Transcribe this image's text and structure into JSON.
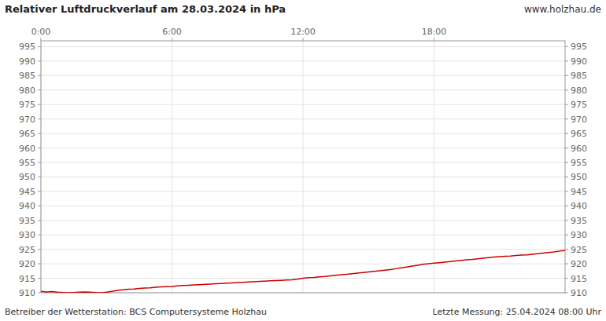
{
  "chart_data": {
    "type": "line",
    "title": "Relativer Luftdruckverlauf am 28.03.2024 in hPa",
    "annotations": [
      "www.holzhau.de",
      "Betreiber der Wetterstation: BCS Computersysteme Holzhau",
      "Letzte Messung: 25.04.2024 08:00 Uhr"
    ],
    "color": "#cc0000",
    "grid": true,
    "xlim": [
      0,
      24
    ],
    "xticks": [
      {
        "value": 0,
        "label": "0:00"
      },
      {
        "value": 6,
        "label": "6:00"
      },
      {
        "value": 12,
        "label": "12:00"
      },
      {
        "value": 18,
        "label": "18:00"
      }
    ],
    "ylim": [
      910,
      997
    ],
    "yticks": [
      910,
      915,
      920,
      925,
      930,
      935,
      940,
      945,
      950,
      955,
      960,
      965,
      970,
      975,
      980,
      985,
      990,
      995
    ],
    "x": [
      0.0,
      0.25,
      0.5,
      0.75,
      1.0,
      1.25,
      1.5,
      1.75,
      2.0,
      2.25,
      2.5,
      2.75,
      3.0,
      3.25,
      3.5,
      3.75,
      4.0,
      4.25,
      4.5,
      4.75,
      5.0,
      5.25,
      5.5,
      5.75,
      6.0,
      6.25,
      6.5,
      6.75,
      7.0,
      7.25,
      7.5,
      7.75,
      8.0,
      8.25,
      8.5,
      8.75,
      9.0,
      9.25,
      9.5,
      9.75,
      10.0,
      10.25,
      10.5,
      10.75,
      11.0,
      11.25,
      11.5,
      11.75,
      12.0,
      12.25,
      12.5,
      12.75,
      13.0,
      13.25,
      13.5,
      13.75,
      14.0,
      14.25,
      14.5,
      14.75,
      15.0,
      15.25,
      15.5,
      15.75,
      16.0,
      16.25,
      16.5,
      16.75,
      17.0,
      17.25,
      17.5,
      17.75,
      18.0,
      18.25,
      18.5,
      18.75,
      19.0,
      19.25,
      19.5,
      19.75,
      20.0,
      20.25,
      20.5,
      20.75,
      21.0,
      21.25,
      21.5,
      21.75,
      22.0,
      22.25,
      22.5,
      22.75,
      23.0,
      23.25,
      23.5,
      23.75,
      24.0
    ],
    "values": [
      910.5,
      910.3,
      910.4,
      910.2,
      910.1,
      910.0,
      910.1,
      910.2,
      910.3,
      910.2,
      910.1,
      910.0,
      910.2,
      910.5,
      910.8,
      911.0,
      911.2,
      911.3,
      911.5,
      911.6,
      911.7,
      911.9,
      912.0,
      912.1,
      912.2,
      912.4,
      912.5,
      912.6,
      912.7,
      912.8,
      912.9,
      913.0,
      913.1,
      913.2,
      913.3,
      913.4,
      913.5,
      913.6,
      913.7,
      913.8,
      913.9,
      914.0,
      914.1,
      914.2,
      914.3,
      914.4,
      914.5,
      914.7,
      915.0,
      915.2,
      915.3,
      915.5,
      915.6,
      915.8,
      916.0,
      916.2,
      916.4,
      916.6,
      916.8,
      917.0,
      917.2,
      917.4,
      917.6,
      917.8,
      918.0,
      918.3,
      918.6,
      918.9,
      919.2,
      919.5,
      919.8,
      920.0,
      920.2,
      920.4,
      920.6,
      920.8,
      921.0,
      921.2,
      921.4,
      921.5,
      921.7,
      921.9,
      922.1,
      922.3,
      922.5,
      922.6,
      922.7,
      922.9,
      923.0,
      923.1,
      923.3,
      923.5,
      923.7,
      923.9,
      924.1,
      924.4,
      924.6
    ]
  }
}
